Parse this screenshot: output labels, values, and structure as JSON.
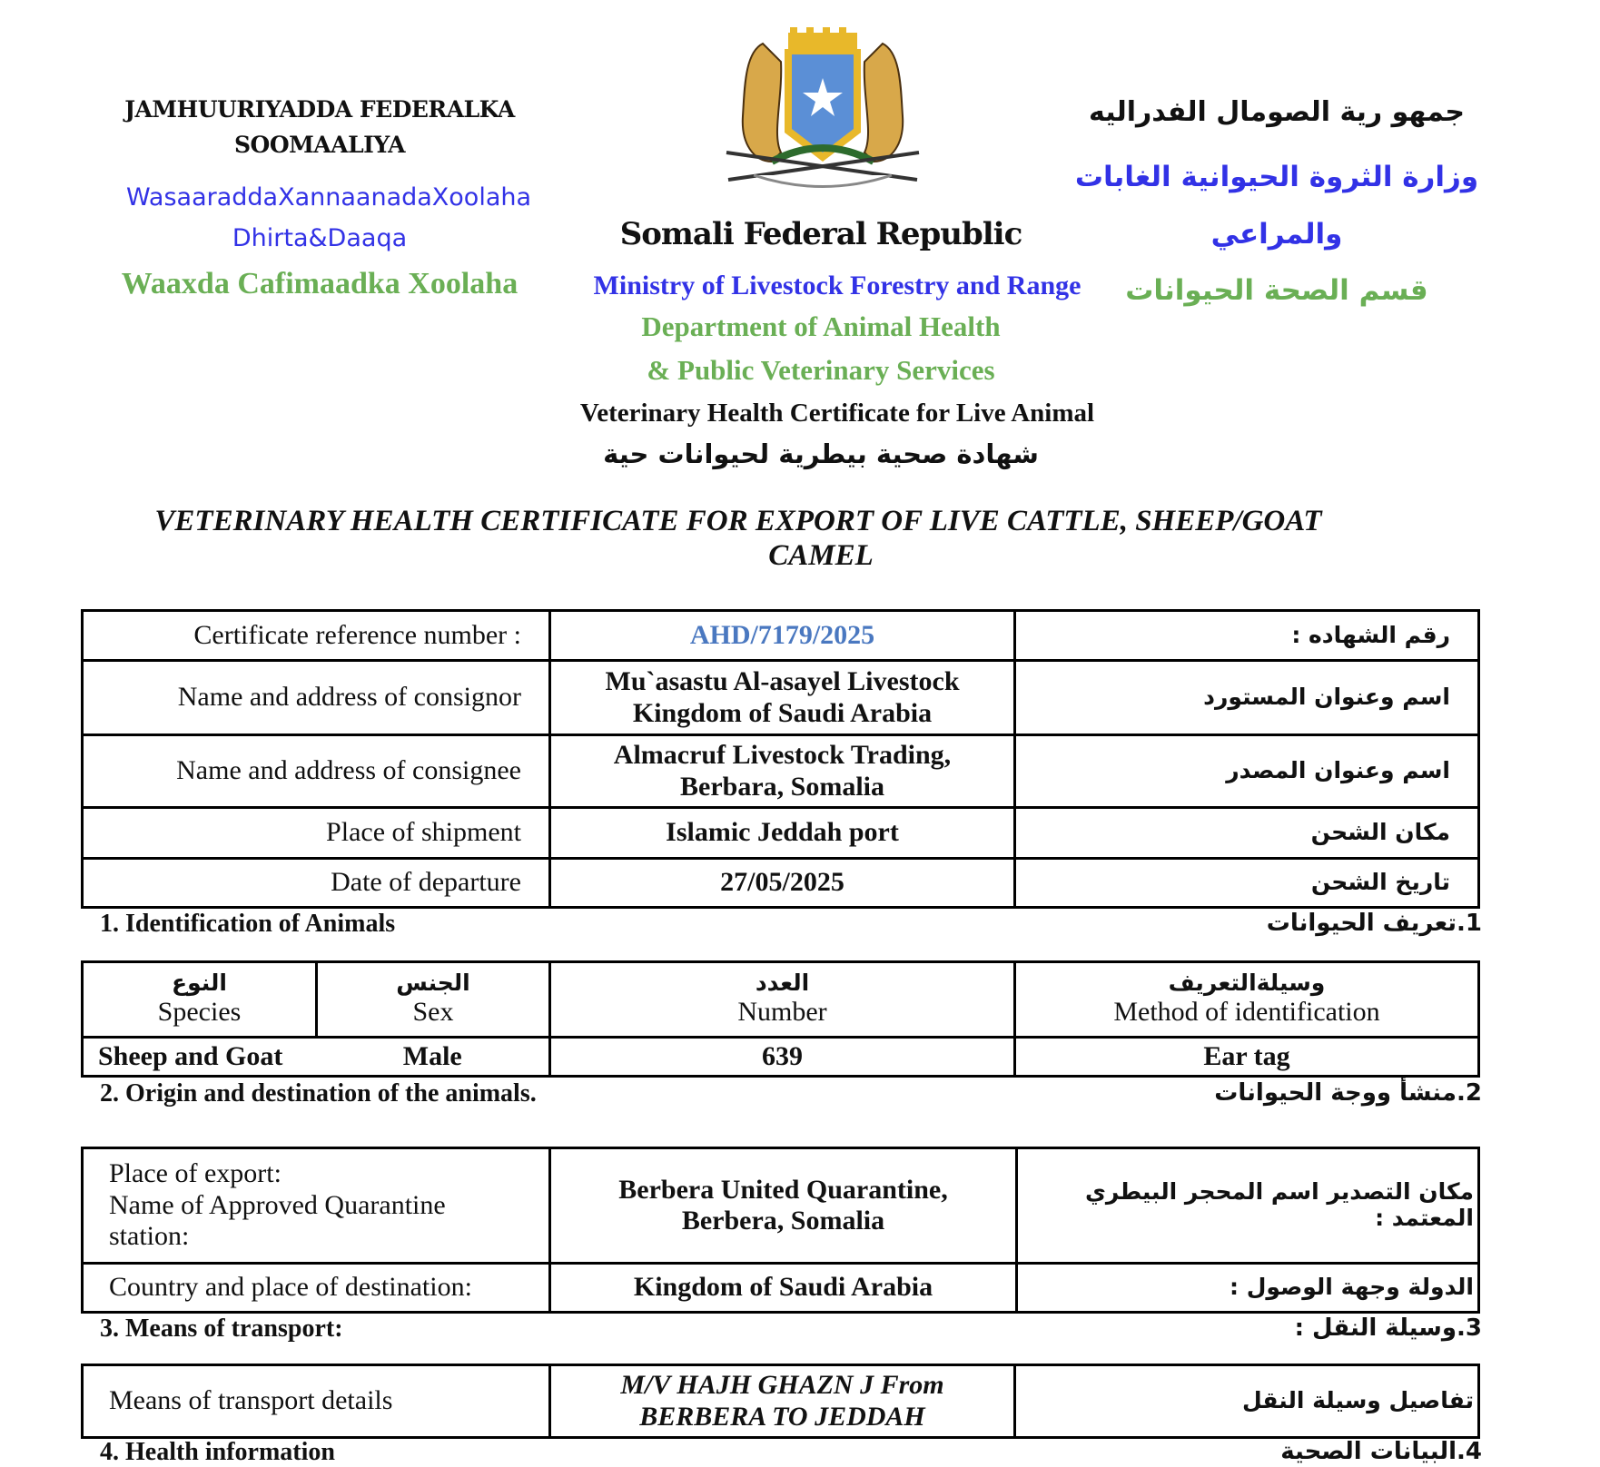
{
  "header": {
    "left": {
      "line1": "JAMHUURIYADDA FEDERALKA",
      "line2": "SOOMAALIYA",
      "ministry1": "WasaaraddaXannaanadaXoolaha",
      "ministry2": "Dhirta&Daaqa",
      "dept": "Waaxda Cafimaadka Xoolaha"
    },
    "center": {
      "republic": "Somali Federal Republic",
      "ministry": "Ministry of Livestock Forestry and Range",
      "dept1": "Department of Animal Health",
      "dept2": "& Public Veterinary Services",
      "cert_en": "Veterinary Health Certificate for Live Animal",
      "cert_ar": "شهادة صحية بيطرية لحيوانات حية"
    },
    "right": {
      "line1": "جمهو رية الصومال الفدراليه",
      "ministry1": "وزارة الثروة الحيوانية الغابات",
      "ministry2": "والمراعي",
      "dept": "قسم الصحة الحيوانات"
    },
    "emblem": "somalia-coat-of-arms",
    "colors": {
      "blue": "#3232e6",
      "green": "#6aaf55",
      "ref": "#4a78c0"
    }
  },
  "title": {
    "line1": "VETERINARY HEALTH CERTIFICATE FOR EXPORT OF LIVE CATTLE, SHEEP/GOAT",
    "line2": "CAMEL"
  },
  "general": [
    {
      "en": "Certificate reference number :",
      "value": "AHD/7179/2025",
      "ar": "رقم الشهاده :"
    },
    {
      "en": "Name and address of consignor",
      "value": "Mu`asastu Al-asayel Livestock Kingdom of Saudi Arabia",
      "ar": "اسم وعنوان المستورد"
    },
    {
      "en": "Name and address of consignee",
      "value": "Almacruf Livestock Trading, Berbara, Somalia",
      "ar": "اسم وعنوان المصدر"
    },
    {
      "en": "Place of shipment",
      "value": "Islamic Jeddah port",
      "ar": "مكان الشحن"
    },
    {
      "en": "Date of departure",
      "value": "27/05/2025",
      "ar": "تاريخ الشحن"
    }
  ],
  "section1": {
    "en": "1. Identification of Animals",
    "ar": "1.تعريف الحيوانات",
    "headers": [
      {
        "ar": "النوع",
        "en": "Species"
      },
      {
        "ar": "الجنس",
        "en": "Sex"
      },
      {
        "ar": "العدد",
        "en": "Number"
      },
      {
        "ar": "وسيلةالتعريف",
        "en": "Method of identification"
      }
    ],
    "row": [
      "Sheep and Goat",
      "Male",
      "639",
      "Ear tag"
    ]
  },
  "section2": {
    "en": "2. Origin and destination of the animals.",
    "ar": "2.منشأ ووجة الحيوانات",
    "rows": [
      {
        "en1": "Place of export:",
        "en2": "Name of Approved Quarantine",
        "en3": "station:",
        "value1": "Berbera United Quarantine,",
        "value2": "Berbera, Somalia",
        "ar": "مكان التصدير اسم المحجر البيطري المعتمد :"
      },
      {
        "en1": "Country and place of destination:",
        "value1": "Kingdom of Saudi Arabia",
        "ar": "الدولة وجهة الوصول :"
      }
    ]
  },
  "section3": {
    "en": "3. Means of transport:",
    "ar": "3.وسيلة النقل :",
    "row": {
      "en": "Means of transport details",
      "value1": "M/V HAJH GHAZN J From",
      "value2": "BERBERA TO JEDDAH",
      "ar": "تفاصيل وسيلة النقل"
    }
  },
  "section4": {
    "en": "4. Health information",
    "ar": "4.البيانات الصحية"
  }
}
